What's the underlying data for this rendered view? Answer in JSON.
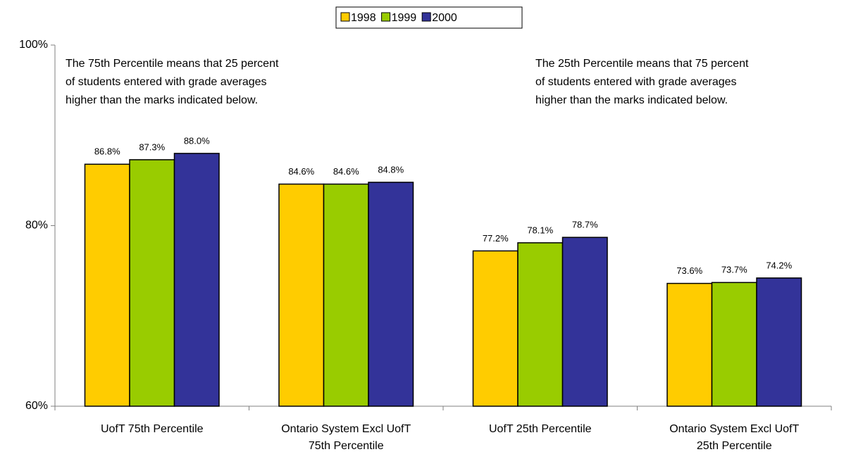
{
  "chart_data": {
    "type": "bar",
    "categories": [
      "UofT 75th Percentile",
      "Ontario System Excl UofT 75th Percentile",
      "UofT 25th Percentile",
      "Ontario System Excl UofT 25th Percentile"
    ],
    "series": [
      {
        "name": "1998",
        "color": "#FFCC00",
        "values": [
          86.8,
          84.6,
          77.2,
          73.6
        ],
        "value_labels": [
          "86.8%",
          "84.6%",
          "77.2%",
          "73.6%"
        ]
      },
      {
        "name": "1999",
        "color": "#99CC00",
        "values": [
          87.3,
          84.6,
          78.1,
          73.7
        ],
        "value_labels": [
          "87.3%",
          "84.6%",
          "78.1%",
          "73.7%"
        ]
      },
      {
        "name": "2000",
        "color": "#333399",
        "values": [
          88.0,
          84.8,
          78.7,
          74.2
        ],
        "value_labels": [
          "88.0%",
          "84.8%",
          "78.7%",
          "74.2%"
        ]
      }
    ],
    "ylim": [
      60,
      100
    ],
    "yticks": [
      {
        "value": 60,
        "label": "60%"
      },
      {
        "value": 80,
        "label": "80%"
      },
      {
        "value": 100,
        "label": "100%"
      }
    ],
    "annotations": [
      [
        "The 75th Percentile means that 25 percent",
        "of students entered with grade averages",
        "higher than the marks indicated below."
      ],
      [
        "The 25th Percentile means that 75 percent",
        "of students entered with grade averages",
        "higher than the marks indicated below."
      ]
    ],
    "legend": "top"
  }
}
